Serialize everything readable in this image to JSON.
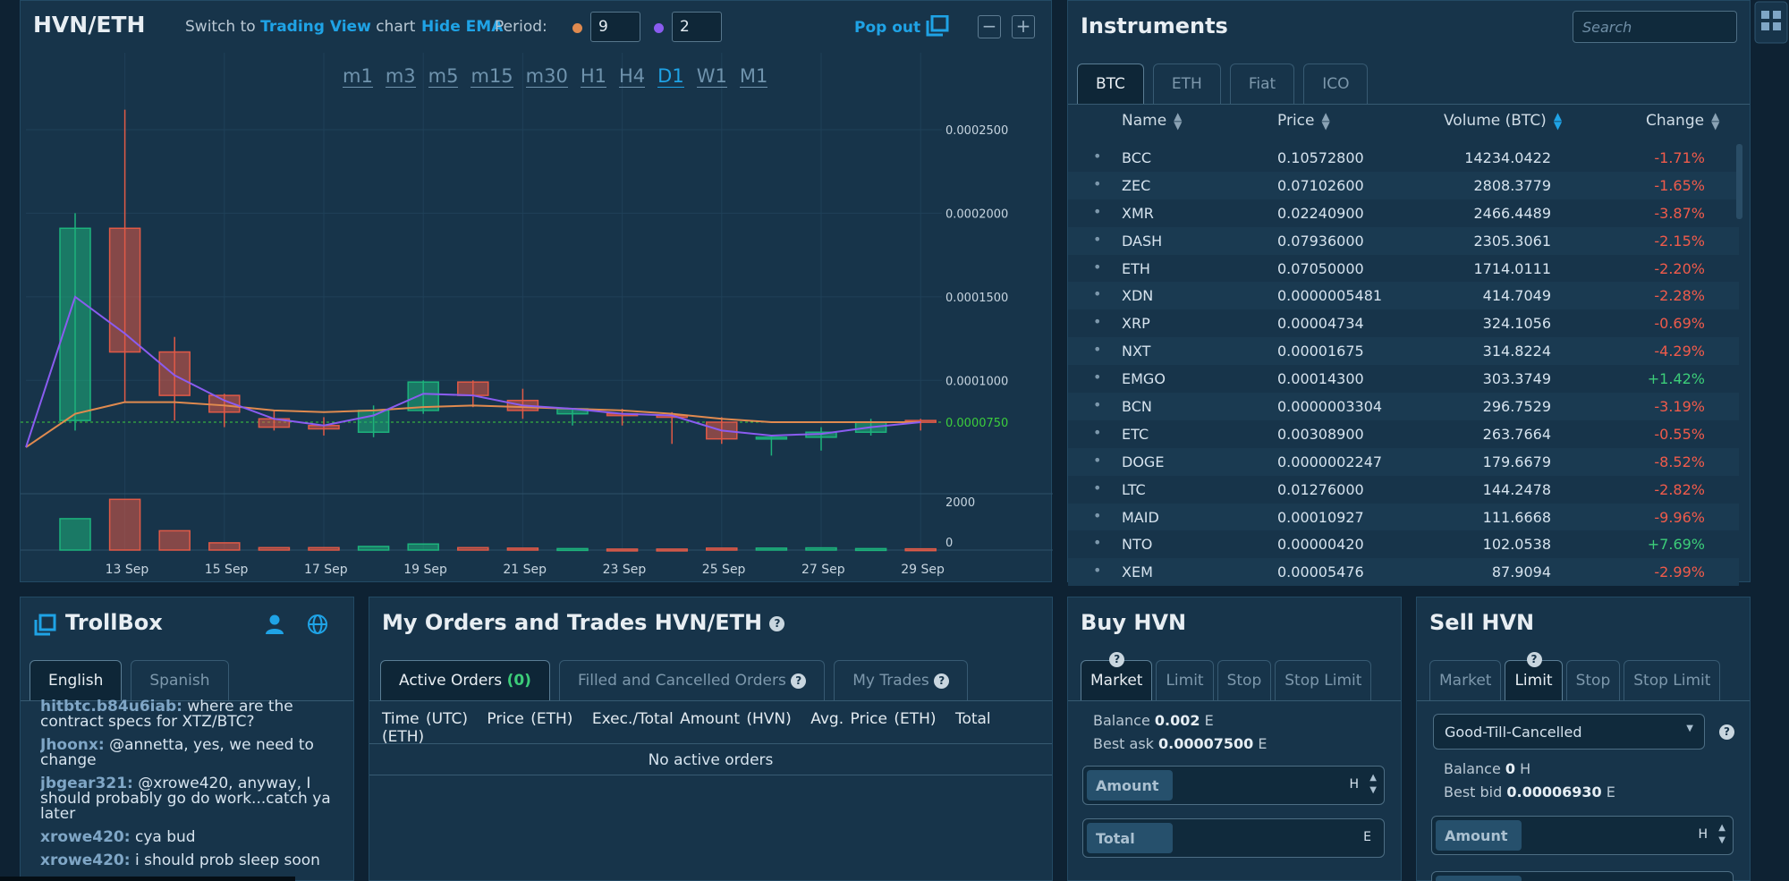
{
  "chart": {
    "pair": "HVN/ETH",
    "switch_prefix": "Switch to",
    "switch_link": "Trading View",
    "switch_suffix": "chart",
    "hide_ema": "Hide EMA",
    "period_label": "Period:",
    "period_1": "9",
    "period_2": "2",
    "pop_out": "Pop out",
    "timeframes": [
      "m1",
      "m3",
      "m5",
      "m15",
      "m30",
      "H1",
      "H4",
      "D1",
      "W1",
      "M1"
    ],
    "active_timeframe": "D1",
    "colors": {
      "up": "#1db37c",
      "down": "#e05a47",
      "ema9": "#e08a4f",
      "ema2": "#8a5cf0",
      "price": "#3ccd3c"
    }
  },
  "chart_data": {
    "type": "candlestick",
    "title": "HVN/ETH",
    "x_ticks": [
      "13 Sep",
      "15 Sep",
      "17 Sep",
      "19 Sep",
      "21 Sep",
      "23 Sep",
      "25 Sep",
      "27 Sep",
      "29 Sep"
    ],
    "y_ticks": [
      "0.0002500",
      "0.0002000",
      "0.0001500",
      "0.0001000"
    ],
    "current_price": "0.0000750",
    "volume_ticks": [
      "2000",
      "0"
    ],
    "ylim": [
      3e-05,
      0.00027
    ],
    "volume_ylim": [
      0,
      2300
    ],
    "candles": [
      {
        "day": 12,
        "open": 7.6e-05,
        "high": 0.0002,
        "low": 7e-05,
        "close": 0.000191,
        "volume": 1300
      },
      {
        "day": 13,
        "open": 0.000191,
        "high": 0.000262,
        "low": 8.7e-05,
        "close": 0.000117,
        "volume": 2100
      },
      {
        "day": 14,
        "open": 0.000117,
        "high": 0.000126,
        "low": 7.6e-05,
        "close": 9.1e-05,
        "volume": 800
      },
      {
        "day": 15,
        "open": 9.1e-05,
        "high": 9.2e-05,
        "low": 7.2e-05,
        "close": 8.1e-05,
        "volume": 300
      },
      {
        "day": 16,
        "open": 7.7e-05,
        "high": 8.2e-05,
        "low": 7e-05,
        "close": 7.2e-05,
        "volume": 100
      },
      {
        "day": 17,
        "open": 7.3e-05,
        "high": 7.8e-05,
        "low": 6.7e-05,
        "close": 7.1e-05,
        "volume": 100
      },
      {
        "day": 18,
        "open": 6.9e-05,
        "high": 8.5e-05,
        "low": 6.6e-05,
        "close": 8.2e-05,
        "volume": 150
      },
      {
        "day": 19,
        "open": 8.2e-05,
        "high": 0.0001,
        "low": 8e-05,
        "close": 9.9e-05,
        "volume": 250
      },
      {
        "day": 20,
        "open": 9.9e-05,
        "high": 0.0001,
        "low": 8.4e-05,
        "close": 9.1e-05,
        "volume": 100
      },
      {
        "day": 21,
        "open": 8.8e-05,
        "high": 9.5e-05,
        "low": 7.7e-05,
        "close": 8.2e-05,
        "volume": 80
      },
      {
        "day": 22,
        "open": 8e-05,
        "high": 8.3e-05,
        "low": 7.3e-05,
        "close": 8.3e-05,
        "volume": 60
      },
      {
        "day": 23,
        "open": 8e-05,
        "high": 8.3e-05,
        "low": 7.3e-05,
        "close": 7.9e-05,
        "volume": 40
      },
      {
        "day": 24,
        "open": 7.9e-05,
        "high": 8.1e-05,
        "low": 6.2e-05,
        "close": 7.8e-05,
        "volume": 40
      },
      {
        "day": 25,
        "open": 7.5e-05,
        "high": 7.8e-05,
        "low": 6.2e-05,
        "close": 6.5e-05,
        "volume": 80
      },
      {
        "day": 26,
        "open": 6.6e-05,
        "high": 6.7e-05,
        "low": 5.5e-05,
        "close": 6.6e-05,
        "volume": 80
      },
      {
        "day": 27,
        "open": 6.6e-05,
        "high": 7.2e-05,
        "low": 5.8e-05,
        "close": 6.9e-05,
        "volume": 90
      },
      {
        "day": 28,
        "open": 6.9e-05,
        "high": 7.7e-05,
        "low": 6.7e-05,
        "close": 7.5e-05,
        "volume": 60
      },
      {
        "day": 29,
        "open": 7.6e-05,
        "high": 7.7e-05,
        "low": 7e-05,
        "close": 7.5e-05,
        "volume": 50
      }
    ],
    "series": [
      {
        "values": [
          6e-05,
          8e-05,
          8.7e-05,
          8.7e-05,
          8.5e-05,
          8.2e-05,
          8.1e-05,
          8.2e-05,
          8.4e-05,
          8.5e-05,
          8.4e-05,
          8.3e-05,
          8.2e-05,
          8e-05,
          7.7e-05,
          7.5e-05,
          7.5e-05,
          7.5e-05,
          7.5e-05
        ]
      },
      {
        "values": [
          6e-05,
          0.00015,
          0.000128,
          0.000103,
          8.8e-05,
          7.7e-05,
          7.3e-05,
          7.9e-05,
          9.2e-05,
          9.1e-05,
          8.5e-05,
          8.3e-05,
          8e-05,
          7.9e-05,
          7e-05,
          6.7e-05,
          6.8e-05,
          7.2e-05,
          7.5e-05
        ]
      }
    ]
  },
  "instruments": {
    "title": "Instruments",
    "search_placeholder": "Search",
    "tabs": [
      "BTC",
      "ETH",
      "Fiat",
      "ICO"
    ],
    "active_tab": "BTC",
    "columns": {
      "name": "Name",
      "price": "Price",
      "volume": "Volume (BTC)",
      "change": "Change"
    },
    "rows": [
      {
        "bullet": "•",
        "name": "BCC",
        "price": "0.10572800",
        "volume": "14234.0422",
        "change": "-1.71%"
      },
      {
        "bullet": "•",
        "name": "ZEC",
        "price": "0.07102600",
        "volume": "2808.3779",
        "change": "-1.65%"
      },
      {
        "bullet": "•",
        "name": "XMR",
        "price": "0.02240900",
        "volume": "2466.4489",
        "change": "-3.87%"
      },
      {
        "bullet": "•",
        "name": "DASH",
        "price": "0.07936000",
        "volume": "2305.3061",
        "change": "-2.15%"
      },
      {
        "bullet": "•",
        "name": "ETH",
        "price": "0.07050000",
        "volume": "1714.0111",
        "change": "-2.20%"
      },
      {
        "bullet": "•",
        "name": "XDN",
        "price": "0.0000005481",
        "volume": "414.7049",
        "change": "-2.28%"
      },
      {
        "bullet": "•",
        "name": "XRP",
        "price": "0.00004734",
        "volume": "324.1056",
        "change": "-0.69%"
      },
      {
        "bullet": "•",
        "name": "NXT",
        "price": "0.00001675",
        "volume": "314.8224",
        "change": "-4.29%"
      },
      {
        "bullet": "•",
        "name": "EMGO",
        "price": "0.00014300",
        "volume": "303.3749",
        "change": "+1.42%"
      },
      {
        "bullet": "•",
        "name": "BCN",
        "price": "0.0000003304",
        "volume": "296.7529",
        "change": "-3.19%"
      },
      {
        "bullet": "•",
        "name": "ETC",
        "price": "0.00308900",
        "volume": "263.7664",
        "change": "-0.55%"
      },
      {
        "bullet": "•",
        "name": "DOGE",
        "price": "0.0000002247",
        "volume": "179.6679",
        "change": "-8.52%"
      },
      {
        "bullet": "•",
        "name": "LTC",
        "price": "0.01276000",
        "volume": "144.2478",
        "change": "-2.82%"
      },
      {
        "bullet": "•",
        "name": "MAID",
        "price": "0.00010927",
        "volume": "111.6668",
        "change": "-9.96%"
      },
      {
        "bullet": "•",
        "name": "NTO",
        "price": "0.00000420",
        "volume": "102.0538",
        "change": "+7.69%"
      },
      {
        "bullet": "•",
        "name": "XEM",
        "price": "0.00005476",
        "volume": "87.9094",
        "change": "-2.99%"
      }
    ]
  },
  "trollbox": {
    "title": "TrollBox",
    "tabs": [
      "English",
      "Spanish"
    ],
    "messages": [
      {
        "user": "hitbtc.b84u6iab:",
        "text": "where are the contract specs for XTZ/BTC?"
      },
      {
        "user": "Jhoonx:",
        "text": "@annetta, yes, we need to change"
      },
      {
        "user": "jbgear321:",
        "text": "@xrowe420, anyway, I should probably go do work...catch ya later"
      },
      {
        "user": "xrowe420:",
        "text": "cya bud"
      },
      {
        "user": "xrowe420:",
        "text": "i should prob sleep soon"
      }
    ]
  },
  "orders": {
    "title": "My Orders and Trades HVN/ETH",
    "help": "?",
    "tab_active_label": "Active Orders",
    "tab_active_count": "(0)",
    "tab_filled": "Filled and Cancelled Orders",
    "tab_trades": "My Trades",
    "columns": [
      "Time (UTC)",
      "Price (ETH)",
      "Exec./Total Amount (HVN)",
      "Avg. Price (ETH)",
      "Total (ETH)"
    ],
    "empty": "No active orders"
  },
  "buy": {
    "title": "Buy HVN",
    "tabs": [
      "Market",
      "Limit",
      "Stop",
      "Stop Limit"
    ],
    "balance_label": "Balance",
    "balance_value": "0.002",
    "balance_unit": "E",
    "best_label": "Best ask",
    "best_value": "0.00007500",
    "best_unit": "E",
    "amount_label": "Amount",
    "amount_unit": "H",
    "total_label": "Total",
    "total_unit": "E"
  },
  "sell": {
    "title": "Sell HVN",
    "tabs": [
      "Market",
      "Limit",
      "Stop",
      "Stop Limit"
    ],
    "order_type": "Good-Till-Cancelled",
    "balance_label": "Balance",
    "balance_value": "0",
    "balance_unit": "H",
    "best_label": "Best bid",
    "best_value": "0.00006930",
    "best_unit": "E",
    "amount_label": "Amount",
    "amount_unit": "H"
  }
}
